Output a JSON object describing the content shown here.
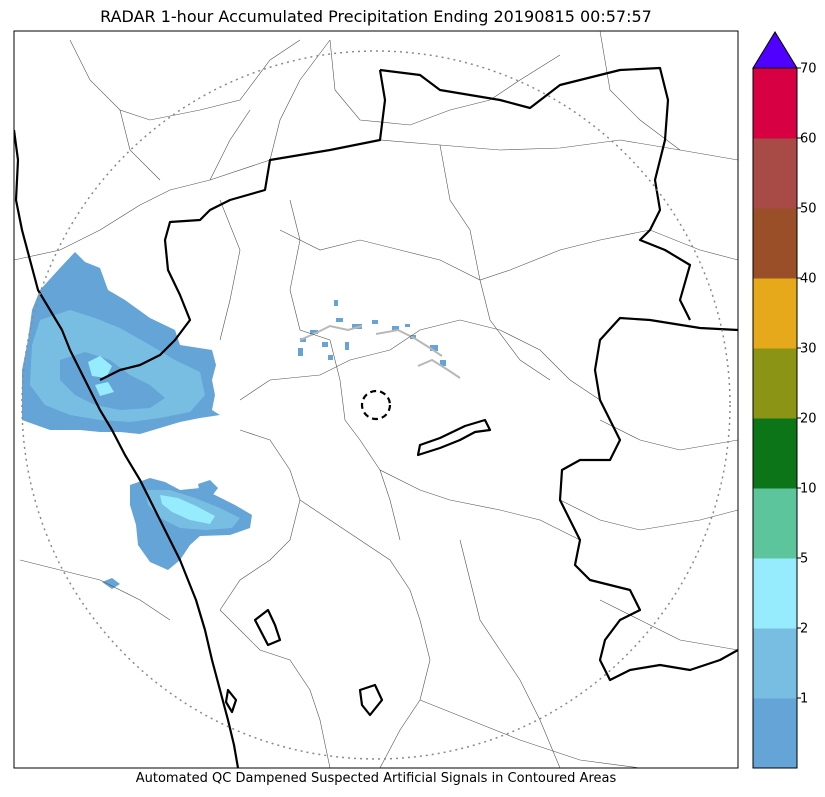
{
  "title": "RADAR 1-hour Accumulated Precipitation Ending 20190815 00:57:57",
  "subtitle": "Automated QC Dampened Suspected Artificial Signals in Contoured Areas",
  "colorbar": {
    "bins": [
      {
        "from": 0,
        "to": 1,
        "color": "#64a4d6"
      },
      {
        "from": 1,
        "to": 2,
        "color": "#78bee3"
      },
      {
        "from": 2,
        "to": 5,
        "color": "#96ecfc"
      },
      {
        "from": 5,
        "to": 10,
        "color": "#5dc59b"
      },
      {
        "from": 10,
        "to": 20,
        "color": "#0c7518"
      },
      {
        "from": 20,
        "to": 30,
        "color": "#8b9414"
      },
      {
        "from": 30,
        "to": 40,
        "color": "#e6a91b"
      },
      {
        "from": 40,
        "to": 50,
        "color": "#9a4f29"
      },
      {
        "from": 50,
        "to": 60,
        "color": "#a84a45"
      },
      {
        "from": 60,
        "to": 70,
        "color": "#d70043"
      }
    ],
    "extend_color": "#5000ff",
    "tick_labels": [
      "1",
      "2",
      "5",
      "10",
      "20",
      "30",
      "40",
      "50",
      "60",
      "70"
    ]
  },
  "colors": {
    "rain_light": "#64a4d6",
    "rain_moderate": "#78bee3",
    "rain_heavy": "#96ecfc",
    "coastline": "#000000",
    "district_lines": "#555555",
    "range_ring": "#8a8a8a"
  }
}
